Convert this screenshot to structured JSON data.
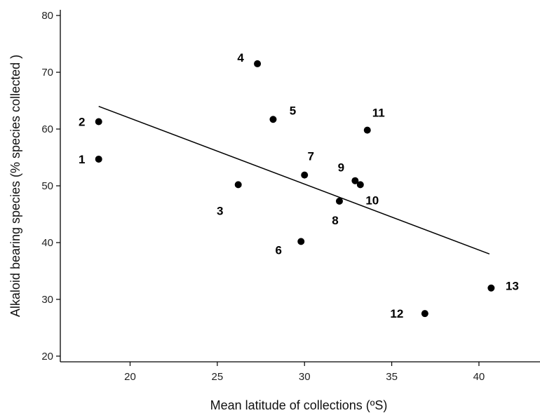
{
  "chart_data": {
    "type": "scatter",
    "xlabel": "Mean latitude of collections (ºS)",
    "ylabel": "Alkaloid bearing species (% species collected )",
    "xlim": [
      16,
      43.5
    ],
    "ylim": [
      19,
      81
    ],
    "xticks": [
      20,
      25,
      30,
      35,
      40
    ],
    "yticks": [
      20,
      30,
      40,
      50,
      60,
      70,
      80
    ],
    "grid": false,
    "points": [
      {
        "label": "1",
        "x": 18.2,
        "y": 54.7
      },
      {
        "label": "2",
        "x": 18.2,
        "y": 61.3
      },
      {
        "label": "3",
        "x": 26.2,
        "y": 50.2
      },
      {
        "label": "4",
        "x": 27.3,
        "y": 71.5
      },
      {
        "label": "5",
        "x": 28.2,
        "y": 61.7
      },
      {
        "label": "6",
        "x": 29.8,
        "y": 40.2
      },
      {
        "label": "7",
        "x": 30.0,
        "y": 51.9
      },
      {
        "label": "8",
        "x": 32.0,
        "y": 47.3
      },
      {
        "label": "9",
        "x": 32.9,
        "y": 50.9
      },
      {
        "label": "10",
        "x": 33.2,
        "y": 50.2
      },
      {
        "label": "11",
        "x": 33.6,
        "y": 59.8
      },
      {
        "label": "12",
        "x": 36.9,
        "y": 27.5
      },
      {
        "label": "13",
        "x": 40.7,
        "y": 32.0
      }
    ],
    "trendline": {
      "x": [
        18.2,
        40.6
      ],
      "y": [
        64.0,
        38.0
      ]
    }
  }
}
